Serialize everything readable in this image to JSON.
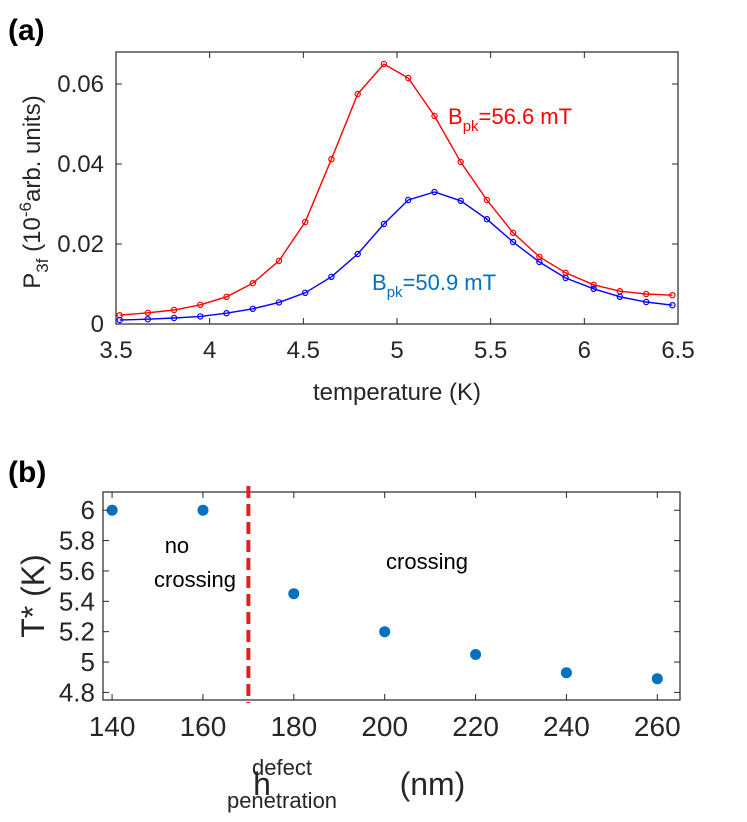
{
  "chart_data": [
    {
      "panel": "(a)",
      "type": "line",
      "xlabel": "temperature (K)",
      "ylabel": {
        "main": "P",
        "sub": "3f",
        "rest": " (10",
        "sup": "-6",
        "tail": "arb. units)"
      },
      "xlim": [
        3.5,
        6.5
      ],
      "ylim": [
        0,
        0.068
      ],
      "xticks": [
        3.5,
        4,
        4.5,
        5,
        5.5,
        6,
        6.5
      ],
      "xticklabels": [
        "3.5",
        "4",
        "4.5",
        "5",
        "5.5",
        "6",
        "6.5"
      ],
      "yticks": [
        0,
        0.02,
        0.04,
        0.06
      ],
      "yticklabels": [
        "0",
        "0.02",
        "0.04",
        "0.06"
      ],
      "grid": false,
      "x": [
        3.52,
        3.67,
        3.81,
        3.95,
        4.09,
        4.23,
        4.37,
        4.51,
        4.65,
        4.79,
        4.93,
        5.06,
        5.2,
        5.34,
        5.48,
        5.62,
        5.76,
        5.9,
        6.05,
        6.19,
        6.33,
        6.47
      ],
      "series": [
        {
          "name": "B_pk=56.6 mT",
          "color": "#ff0000",
          "values": [
            0.0022,
            0.0028,
            0.0035,
            0.0048,
            0.0068,
            0.0102,
            0.0158,
            0.0255,
            0.0412,
            0.0575,
            0.065,
            0.0615,
            0.052,
            0.0405,
            0.031,
            0.0228,
            0.0168,
            0.0128,
            0.0098,
            0.0082,
            0.0075,
            0.0072
          ]
        },
        {
          "name": "B_pk=50.9 mT",
          "color": "#0000ff",
          "values": [
            0.001,
            0.0012,
            0.0015,
            0.0019,
            0.0027,
            0.0038,
            0.0054,
            0.0078,
            0.0118,
            0.0175,
            0.025,
            0.031,
            0.033,
            0.0308,
            0.0262,
            0.0205,
            0.0155,
            0.0115,
            0.0088,
            0.0068,
            0.0055,
            0.0047
          ]
        }
      ],
      "annotations": [
        {
          "main": "B",
          "sub": "pk",
          "rest": "=56.6 mT",
          "color": "#ff0000"
        },
        {
          "main": "B",
          "sub": "pk",
          "rest": "=50.9 mT",
          "color": "#0070c0"
        }
      ]
    },
    {
      "panel": "(b)",
      "type": "scatter",
      "xlabel": {
        "main": "h",
        "sup": "defect",
        "sub": "penetration",
        "rest": " (nm)"
      },
      "ylabel": "T* (K)",
      "xlim": [
        138,
        265
      ],
      "ylim": [
        4.75,
        6.12
      ],
      "xticks": [
        140,
        160,
        180,
        200,
        220,
        240,
        260
      ],
      "xticklabels": [
        "140",
        "160",
        "180",
        "200",
        "220",
        "240",
        "260"
      ],
      "yticks": [
        4.8,
        5,
        5.2,
        5.4,
        5.6,
        5.8,
        6
      ],
      "yticklabels": [
        "4.8",
        "5",
        "5.2",
        "5.4",
        "5.6",
        "5.8",
        "6"
      ],
      "grid": false,
      "x": [
        140,
        160,
        180,
        200,
        220,
        240,
        260
      ],
      "y": [
        6.0,
        6.0,
        5.45,
        5.2,
        5.05,
        4.93,
        4.89
      ],
      "color": "#0070c0",
      "divider": {
        "x": 170,
        "color": "#dd2222"
      },
      "regions": [
        {
          "lines": [
            "no",
            "crossing"
          ]
        },
        {
          "lines": [
            "crossing"
          ]
        }
      ]
    }
  ]
}
